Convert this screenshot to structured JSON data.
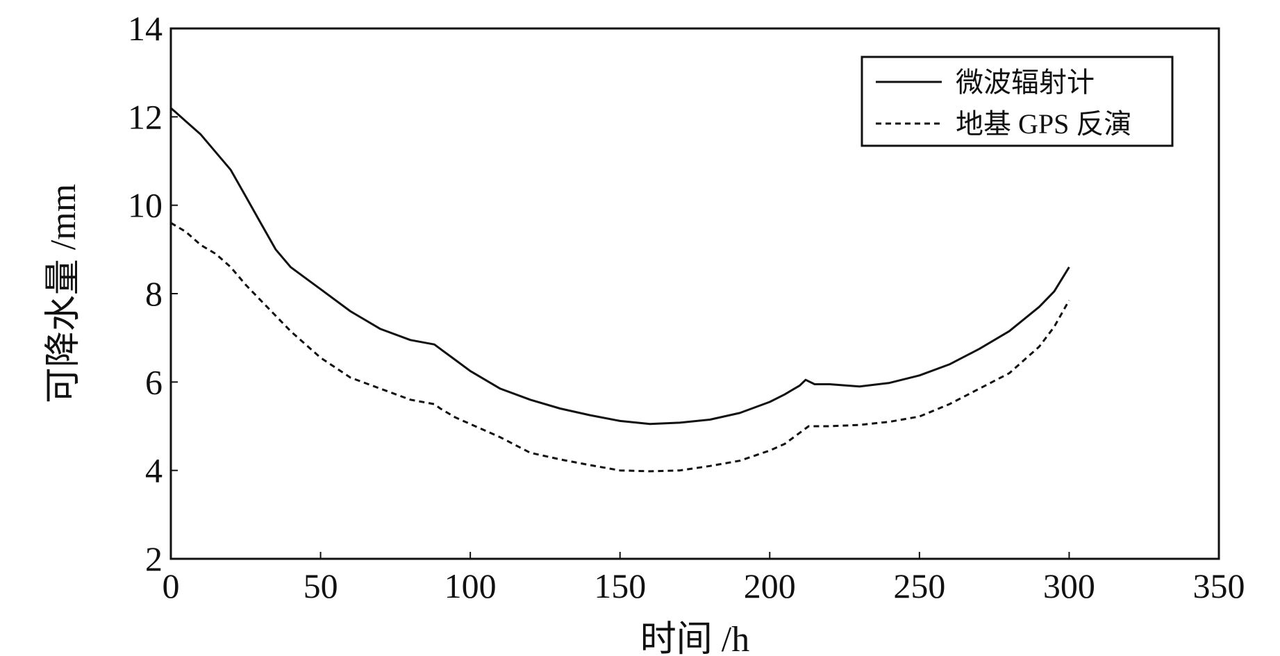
{
  "chart_data": {
    "type": "line",
    "xlabel": "时间 /h",
    "ylabel": "可降水量 /mm",
    "xlim": [
      0,
      350
    ],
    "ylim": [
      2,
      14
    ],
    "xticks": [
      0,
      50,
      100,
      150,
      200,
      250,
      300,
      350
    ],
    "yticks": [
      2,
      4,
      6,
      8,
      10,
      12,
      14
    ],
    "grid": false,
    "legend_position": "top-right",
    "series": [
      {
        "name": "微波辐射计",
        "style": "solid",
        "color": "#111111",
        "x": [
          0,
          5,
          10,
          15,
          20,
          25,
          30,
          35,
          40,
          45,
          50,
          60,
          70,
          80,
          88,
          90,
          95,
          100,
          110,
          120,
          130,
          140,
          150,
          160,
          170,
          180,
          190,
          200,
          205,
          210,
          212,
          215,
          220,
          230,
          240,
          250,
          260,
          270,
          280,
          290,
          295,
          300
        ],
        "y": [
          12.2,
          11.9,
          11.6,
          11.2,
          10.8,
          10.2,
          9.6,
          9.0,
          8.6,
          8.35,
          8.1,
          7.6,
          7.2,
          6.95,
          6.85,
          6.75,
          6.5,
          6.25,
          5.85,
          5.6,
          5.4,
          5.25,
          5.12,
          5.05,
          5.08,
          5.15,
          5.3,
          5.55,
          5.72,
          5.92,
          6.05,
          5.95,
          5.95,
          5.9,
          5.98,
          6.15,
          6.4,
          6.75,
          7.15,
          7.7,
          8.05,
          8.6
        ]
      },
      {
        "name": "地基 GPS 反演",
        "style": "dashed",
        "color": "#111111",
        "x": [
          0,
          5,
          10,
          15,
          20,
          25,
          30,
          35,
          40,
          45,
          50,
          60,
          70,
          80,
          88,
          90,
          95,
          100,
          110,
          120,
          130,
          140,
          150,
          160,
          170,
          180,
          190,
          200,
          205,
          210,
          213,
          220,
          230,
          240,
          250,
          260,
          270,
          280,
          290,
          295,
          300
        ],
        "y": [
          9.6,
          9.4,
          9.1,
          8.9,
          8.6,
          8.2,
          7.85,
          7.5,
          7.15,
          6.85,
          6.55,
          6.1,
          5.85,
          5.6,
          5.5,
          5.4,
          5.2,
          5.05,
          4.75,
          4.4,
          4.25,
          4.12,
          4.0,
          3.98,
          4.0,
          4.1,
          4.22,
          4.45,
          4.6,
          4.85,
          5.0,
          5.0,
          5.03,
          5.1,
          5.22,
          5.5,
          5.85,
          6.2,
          6.8,
          7.25,
          7.85
        ]
      }
    ]
  }
}
